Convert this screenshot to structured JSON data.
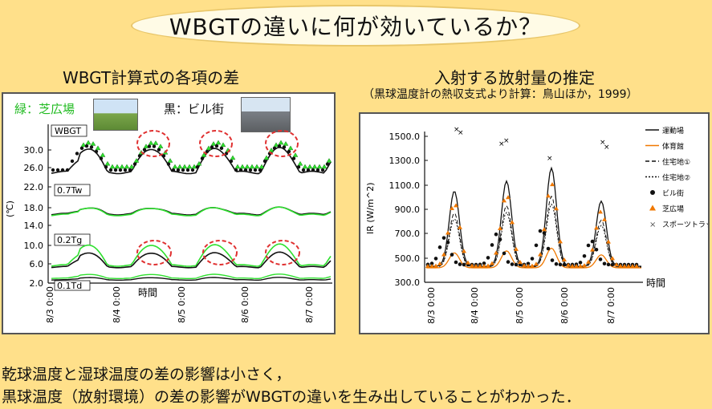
{
  "title": "WBGTの違いに何が効いているか？",
  "left": {
    "heading": "WBGT計算式の各項の差",
    "legend_green": "緑：芝広場",
    "legend_black": "黒：ビル街",
    "ylabel": "(℃)",
    "xlabel": "時間",
    "panels": [
      {
        "label": "WBGT",
        "ticks": [
          "30.0",
          "26.0",
          "22.0"
        ]
      },
      {
        "label": "0.7Tw",
        "ticks": [
          "18.0",
          "14.0"
        ]
      },
      {
        "label": "0.2Tg",
        "ticks": [
          "10.0",
          "6.0"
        ]
      },
      {
        "label": "0.1Td",
        "ticks": [
          "2.0"
        ]
      }
    ],
    "xticks": [
      "8/3 0:00",
      "8/4 0:00",
      "8/5 0:00",
      "8/6 0:00",
      "8/7 0:00"
    ]
  },
  "right": {
    "heading": "入射する放射量の推定",
    "subheading": "（黒球温度計の熱収支式より計算：鳥山ほか，1999）",
    "ylabel": "IR (W/m^2)",
    "xlabel": "時間",
    "yticks": [
      "1500.0",
      "1300.0",
      "1100.0",
      "900.0",
      "700.0",
      "500.0",
      "300.0"
    ],
    "xticks": [
      "8/3 0:00",
      "8/4 0:00",
      "8/5 0:00",
      "8/6 0:00",
      "8/7 0:00"
    ],
    "legend": [
      "運動場",
      "体育館",
      "住宅地①",
      "住宅地②",
      "ビル街",
      "芝広場",
      "スポーツトラック"
    ],
    "colors": {
      "orange": "#f07800",
      "green": "#2ee02e",
      "red_circle": "#e03030"
    }
  },
  "conclusion": [
    "乾球温度と湿球温度の差の影響は小さく，",
    "黒球温度（放射環境）の差の影響がWBGTの違いを生み出していることがわかった．"
  ]
}
